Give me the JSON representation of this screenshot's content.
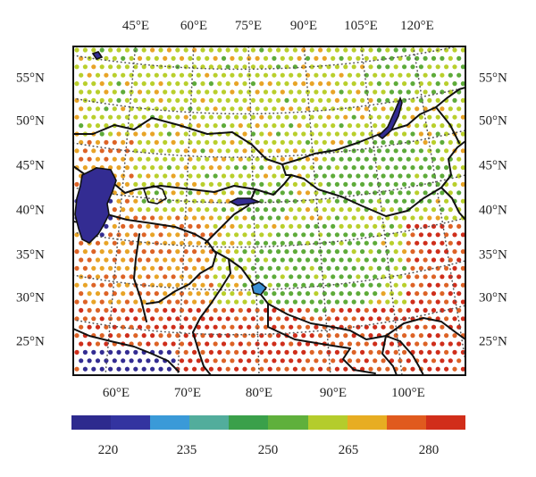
{
  "map": {
    "top_lon_labels": [
      "45°E",
      "60°E",
      "75°E",
      "90°E",
      "105°E",
      "120°E"
    ],
    "bottom_lon_labels": [
      "60°E",
      "70°E",
      "80°E",
      "90°E",
      "100°E"
    ],
    "left_lat_labels": [
      "55°N",
      "50°N",
      "45°N",
      "40°N",
      "35°N",
      "30°N",
      "25°N"
    ],
    "right_lat_labels": [
      "55°N",
      "50°N",
      "45°N",
      "40°N",
      "35°N",
      "30°N",
      "25°N"
    ]
  },
  "colorbar": {
    "colors": [
      "#2d2a8e",
      "#3334a0",
      "#3a9ad8",
      "#52ad9c",
      "#3aa04a",
      "#5fb03c",
      "#b4cc2c",
      "#e7ad22",
      "#e05a1e",
      "#d12e1a"
    ],
    "tick_labels": [
      "220",
      "235",
      "250",
      "265",
      "280"
    ]
  },
  "colors": {
    "blue_deep": "#332c92",
    "blue": "#3a8fd4",
    "teal": "#4fae9a",
    "green_dark": "#33944a",
    "green": "#5eab3a",
    "yellow_green": "#b9cf2c",
    "orange": "#e8a427",
    "orange_red": "#dd6326",
    "red": "#cf2e1b",
    "border": "#111111",
    "graticule": "#555555"
  }
}
